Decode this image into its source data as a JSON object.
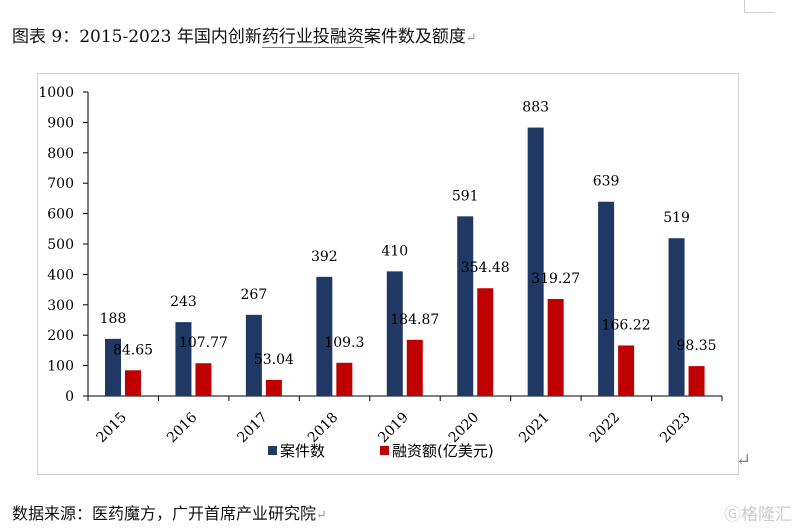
{
  "title": {
    "prefix": "图表 9：2015-2023 年国内创新",
    "underlined": "药行业投融资",
    "suffix": "案件数及额度"
  },
  "source": "数据来源：医药魔方，广开首席产业研究院",
  "watermark": "格隆汇",
  "chart_data": {
    "type": "bar",
    "categories": [
      "2015",
      "2016",
      "2017",
      "2018",
      "2019",
      "2020",
      "2021",
      "2022",
      "2023"
    ],
    "series": [
      {
        "name": "案件数",
        "color": "#1f3864",
        "values": [
          188,
          243,
          267,
          392,
          410,
          591,
          883,
          639,
          519
        ],
        "labels": [
          "188",
          "243",
          "267",
          "392",
          "410",
          "591",
          "883",
          "639",
          "519"
        ]
      },
      {
        "name": "融资额(亿美元)",
        "color": "#c00000",
        "values": [
          84.65,
          107.77,
          53.04,
          109.3,
          184.87,
          354.48,
          319.27,
          166.22,
          98.35
        ],
        "labels": [
          "84.65",
          "107.77",
          "53.04",
          "109.3",
          "184.87",
          "354.48",
          "319.27",
          "166.22",
          "98.35"
        ]
      }
    ],
    "ylim": [
      0,
      1000
    ],
    "yticks": [
      "0",
      "100",
      "200",
      "300",
      "400",
      "500",
      "600",
      "700",
      "800",
      "900",
      "1000"
    ],
    "grid": false,
    "legend": "bottom"
  }
}
